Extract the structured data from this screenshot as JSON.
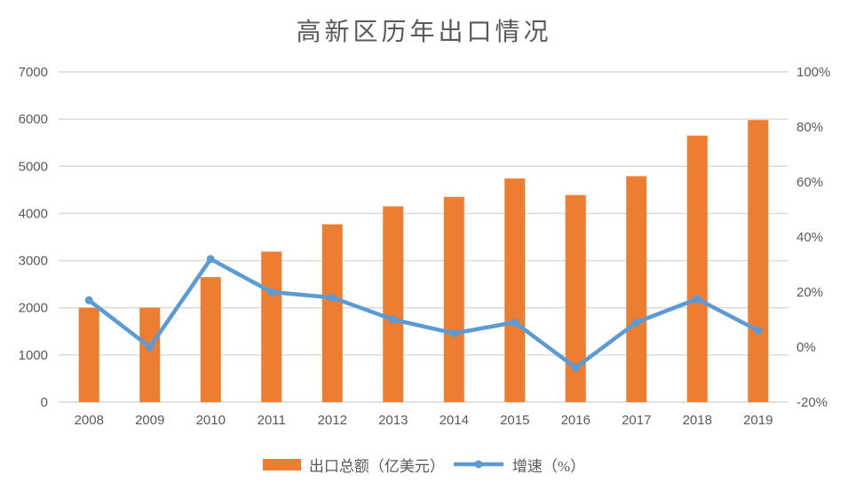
{
  "title": "高新区历年出口情况",
  "legend": {
    "bar_label": "出口总额（亿美元）",
    "line_label": "增速（%）"
  },
  "colors": {
    "bar": "#ED7D31",
    "line": "#5B9BD5",
    "grid": "#D9D9D9",
    "axis_text": "#595959",
    "title_text": "#595959",
    "background": "#FFFFFF"
  },
  "chart_data": {
    "type": "bar",
    "subtype": "bar-line-combo",
    "title": "高新区历年出口情况",
    "categories": [
      "2008",
      "2009",
      "2010",
      "2011",
      "2012",
      "2013",
      "2014",
      "2015",
      "2016",
      "2017",
      "2018",
      "2019"
    ],
    "series": [
      {
        "name": "出口总额（亿美元）",
        "type": "bar",
        "axis": "left",
        "color": "#ED7D31",
        "values": [
          2000,
          2000,
          2650,
          3190,
          3770,
          4150,
          4350,
          4740,
          4390,
          4790,
          5650,
          5980
        ]
      },
      {
        "name": "增速（%）",
        "type": "line",
        "axis": "right",
        "color": "#5B9BD5",
        "values": [
          17,
          0,
          32,
          20,
          18,
          10,
          5,
          9,
          -7.5,
          9,
          17.5,
          6
        ]
      }
    ],
    "left_axis": {
      "min": 0,
      "max": 7000,
      "step": 1000,
      "tick_labels": [
        "0",
        "1000",
        "2000",
        "3000",
        "4000",
        "5000",
        "6000",
        "7000"
      ]
    },
    "right_axis": {
      "min": -20,
      "max": 100,
      "step": 20,
      "tick_labels": [
        "-20%",
        "0%",
        "20%",
        "40%",
        "60%",
        "80%",
        "100%"
      ]
    },
    "grid": "horizontal",
    "legend_position": "bottom"
  }
}
